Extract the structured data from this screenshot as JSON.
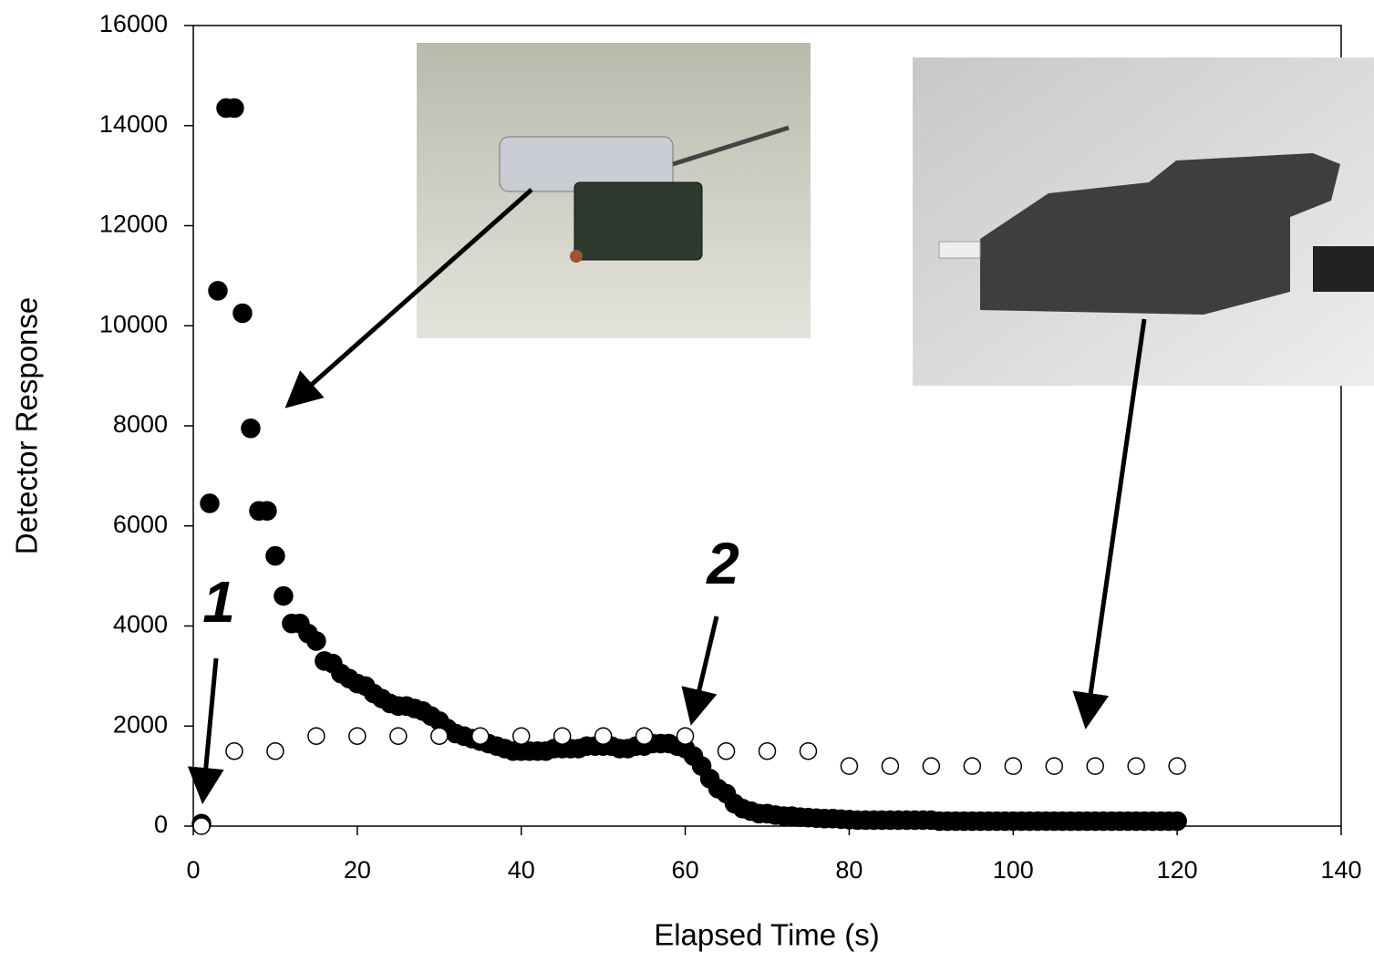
{
  "chart_data": {
    "type": "scatter",
    "xlabel": "Elapsed Time (s)",
    "ylabel": "Detector Response",
    "xlim": [
      0,
      140
    ],
    "ylim": [
      0,
      16000
    ],
    "xticks": [
      0,
      20,
      40,
      60,
      80,
      100,
      120,
      140
    ],
    "yticks": [
      0,
      2000,
      4000,
      6000,
      8000,
      10000,
      12000,
      14000,
      16000
    ],
    "annotations": [
      "1",
      "2"
    ],
    "series": [
      {
        "color": "#000000",
        "marker": "filled",
        "x": [
          1,
          2,
          3,
          4,
          5,
          6,
          7,
          8,
          9,
          10,
          11,
          12,
          13,
          14,
          15,
          16,
          17,
          18,
          19,
          20,
          21,
          22,
          23,
          24,
          25,
          26,
          27,
          28,
          29,
          30,
          31,
          32,
          33,
          34,
          35,
          36,
          37,
          38,
          39,
          40,
          41,
          42,
          43,
          44,
          45,
          46,
          47,
          48,
          49,
          50,
          51,
          52,
          53,
          54,
          55,
          56,
          57,
          58,
          59,
          60,
          61,
          62,
          63,
          64,
          65,
          66,
          67,
          68,
          69,
          70,
          71,
          72,
          73,
          74,
          75,
          76,
          77,
          78,
          79,
          80,
          81,
          82,
          83,
          84,
          85,
          86,
          87,
          88,
          89,
          90,
          91,
          92,
          93,
          94,
          95,
          96,
          97,
          98,
          99,
          100,
          101,
          102,
          103,
          104,
          105,
          106,
          107,
          108,
          109,
          110,
          111,
          112,
          113,
          114,
          115,
          116,
          117,
          118,
          119,
          120
        ],
        "values": [
          50,
          6450,
          10700,
          14350,
          14350,
          10250,
          7950,
          6300,
          6300,
          5400,
          4600,
          4050,
          4050,
          3850,
          3700,
          3300,
          3250,
          3050,
          2950,
          2850,
          2800,
          2650,
          2550,
          2450,
          2400,
          2400,
          2350,
          2300,
          2200,
          2100,
          1950,
          1850,
          1800,
          1750,
          1700,
          1650,
          1600,
          1550,
          1500,
          1500,
          1500,
          1500,
          1500,
          1550,
          1550,
          1550,
          1550,
          1600,
          1600,
          1600,
          1600,
          1550,
          1550,
          1600,
          1600,
          1650,
          1650,
          1650,
          1600,
          1550,
          1400,
          1200,
          950,
          750,
          650,
          450,
          350,
          300,
          250,
          250,
          220,
          200,
          200,
          180,
          170,
          160,
          150,
          150,
          140,
          130,
          120,
          120,
          120,
          120,
          120,
          120,
          120,
          120,
          120,
          120,
          100,
          100,
          100,
          100,
          100,
          100,
          100,
          100,
          100,
          100,
          100,
          100,
          100,
          100,
          100,
          100,
          100,
          100,
          100,
          100,
          100,
          100,
          100,
          100,
          100,
          100,
          100,
          100,
          100,
          100
        ]
      },
      {
        "color": "#000000",
        "marker": "open",
        "x": [
          1,
          5,
          10,
          15,
          20,
          25,
          30,
          35,
          40,
          45,
          50,
          55,
          60,
          65,
          70,
          75,
          80,
          85,
          90,
          95,
          100,
          105,
          110,
          115,
          120
        ],
        "values": [
          0,
          1500,
          1500,
          1800,
          1800,
          1800,
          1800,
          1800,
          1800,
          1800,
          1800,
          1800,
          1800,
          1500,
          1500,
          1500,
          1200,
          1200,
          1200,
          1200,
          1200,
          1200,
          1200,
          1200,
          1200
        ]
      }
    ]
  }
}
